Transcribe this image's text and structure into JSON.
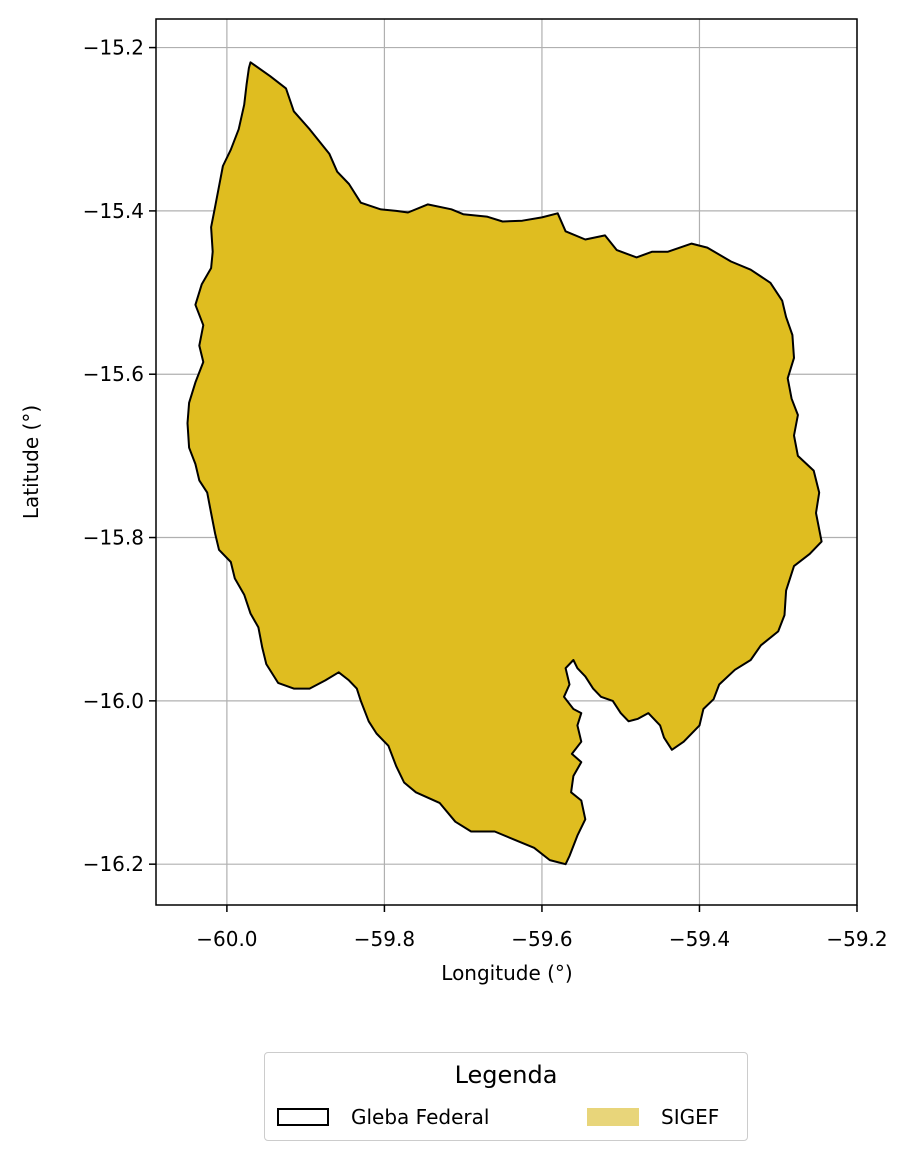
{
  "axes": {
    "xlabel": "Longitude (°)",
    "ylabel": "Latitude (°)",
    "xlim": [
      -60.09,
      -59.2
    ],
    "ylim": [
      -16.25,
      -15.165
    ],
    "xticks": [
      -60.0,
      -59.8,
      -59.6,
      -59.4,
      -59.2
    ],
    "xtick_labels": [
      "−60.0",
      "−59.8",
      "−59.6",
      "−59.4",
      "−59.2"
    ],
    "yticks": [
      -15.2,
      -15.4,
      -15.6,
      -15.8,
      -16.0,
      -16.2
    ],
    "ytick_labels": [
      "−15.2",
      "−15.4",
      "−15.6",
      "−15.8",
      "−16.0",
      "−16.2"
    ],
    "grid": true
  },
  "chart_data": {
    "type": "map",
    "grid": true,
    "layers": [
      {
        "name": "Gleba Federal",
        "style": "outline",
        "edge_color": "#000000",
        "polygon": [
          [
            -59.97,
            -15.218
          ],
          [
            -59.945,
            -15.235
          ],
          [
            -59.925,
            -15.25
          ],
          [
            -59.915,
            -15.278
          ],
          [
            -59.895,
            -15.3
          ],
          [
            -59.87,
            -15.33
          ],
          [
            -59.86,
            -15.352
          ],
          [
            -59.845,
            -15.367
          ],
          [
            -59.83,
            -15.39
          ],
          [
            -59.805,
            -15.398
          ],
          [
            -59.785,
            -15.4
          ],
          [
            -59.77,
            -15.402
          ],
          [
            -59.745,
            -15.392
          ],
          [
            -59.715,
            -15.398
          ],
          [
            -59.7,
            -15.404
          ],
          [
            -59.67,
            -15.407
          ],
          [
            -59.65,
            -15.413
          ],
          [
            -59.625,
            -15.412
          ],
          [
            -59.6,
            -15.408
          ],
          [
            -59.58,
            -15.403
          ],
          [
            -59.57,
            -15.425
          ],
          [
            -59.545,
            -15.435
          ],
          [
            -59.52,
            -15.43
          ],
          [
            -59.505,
            -15.448
          ],
          [
            -59.48,
            -15.457
          ],
          [
            -59.46,
            -15.45
          ],
          [
            -59.44,
            -15.45
          ],
          [
            -59.41,
            -15.44
          ],
          [
            -59.39,
            -15.445
          ],
          [
            -59.36,
            -15.462
          ],
          [
            -59.335,
            -15.472
          ],
          [
            -59.31,
            -15.488
          ],
          [
            -59.295,
            -15.51
          ],
          [
            -59.29,
            -15.53
          ],
          [
            -59.282,
            -15.552
          ],
          [
            -59.28,
            -15.58
          ],
          [
            -59.288,
            -15.605
          ],
          [
            -59.283,
            -15.63
          ],
          [
            -59.275,
            -15.65
          ],
          [
            -59.28,
            -15.675
          ],
          [
            -59.275,
            -15.7
          ],
          [
            -59.255,
            -15.718
          ],
          [
            -59.248,
            -15.745
          ],
          [
            -59.252,
            -15.77
          ],
          [
            -59.245,
            -15.805
          ],
          [
            -59.26,
            -15.82
          ],
          [
            -59.28,
            -15.835
          ],
          [
            -59.29,
            -15.865
          ],
          [
            -59.292,
            -15.895
          ],
          [
            -59.3,
            -15.915
          ],
          [
            -59.322,
            -15.932
          ],
          [
            -59.335,
            -15.95
          ],
          [
            -59.355,
            -15.962
          ],
          [
            -59.375,
            -15.98
          ],
          [
            -59.382,
            -15.998
          ],
          [
            -59.395,
            -16.01
          ],
          [
            -59.4,
            -16.03
          ],
          [
            -59.42,
            -16.05
          ],
          [
            -59.435,
            -16.06
          ],
          [
            -59.445,
            -16.045
          ],
          [
            -59.45,
            -16.03
          ],
          [
            -59.465,
            -16.015
          ],
          [
            -59.478,
            -16.022
          ],
          [
            -59.49,
            -16.025
          ],
          [
            -59.5,
            -16.015
          ],
          [
            -59.51,
            -16.0
          ],
          [
            -59.525,
            -15.995
          ],
          [
            -59.535,
            -15.985
          ],
          [
            -59.545,
            -15.97
          ],
          [
            -59.555,
            -15.96
          ],
          [
            -59.56,
            -15.95
          ],
          [
            -59.57,
            -15.96
          ],
          [
            -59.565,
            -15.98
          ],
          [
            -59.572,
            -15.995
          ],
          [
            -59.56,
            -16.01
          ],
          [
            -59.55,
            -16.015
          ],
          [
            -59.555,
            -16.03
          ],
          [
            -59.55,
            -16.05
          ],
          [
            -59.562,
            -16.065
          ],
          [
            -59.55,
            -16.075
          ],
          [
            -59.56,
            -16.092
          ],
          [
            -59.563,
            -16.112
          ],
          [
            -59.55,
            -16.122
          ],
          [
            -59.545,
            -16.145
          ],
          [
            -59.555,
            -16.165
          ],
          [
            -59.565,
            -16.19
          ],
          [
            -59.57,
            -16.2
          ],
          [
            -59.59,
            -16.195
          ],
          [
            -59.61,
            -16.18
          ],
          [
            -59.63,
            -16.172
          ],
          [
            -59.66,
            -16.16
          ],
          [
            -59.69,
            -16.16
          ],
          [
            -59.71,
            -16.148
          ],
          [
            -59.73,
            -16.125
          ],
          [
            -59.76,
            -16.112
          ],
          [
            -59.775,
            -16.1
          ],
          [
            -59.785,
            -16.08
          ],
          [
            -59.795,
            -16.055
          ],
          [
            -59.81,
            -16.04
          ],
          [
            -59.82,
            -16.025
          ],
          [
            -59.83,
            -16.0
          ],
          [
            -59.835,
            -15.985
          ],
          [
            -59.845,
            -15.975
          ],
          [
            -59.858,
            -15.965
          ],
          [
            -59.875,
            -15.975
          ],
          [
            -59.895,
            -15.985
          ],
          [
            -59.915,
            -15.985
          ],
          [
            -59.935,
            -15.978
          ],
          [
            -59.95,
            -15.955
          ],
          [
            -59.955,
            -15.935
          ],
          [
            -59.96,
            -15.91
          ],
          [
            -59.97,
            -15.893
          ],
          [
            -59.978,
            -15.87
          ],
          [
            -59.99,
            -15.85
          ],
          [
            -59.995,
            -15.83
          ],
          [
            -60.01,
            -15.815
          ],
          [
            -60.015,
            -15.795
          ],
          [
            -60.02,
            -15.77
          ],
          [
            -60.025,
            -15.745
          ],
          [
            -60.035,
            -15.73
          ],
          [
            -60.04,
            -15.71
          ],
          [
            -60.048,
            -15.69
          ],
          [
            -60.05,
            -15.66
          ],
          [
            -60.048,
            -15.635
          ],
          [
            -60.04,
            -15.61
          ],
          [
            -60.03,
            -15.585
          ],
          [
            -60.035,
            -15.565
          ],
          [
            -60.03,
            -15.54
          ],
          [
            -60.04,
            -15.515
          ],
          [
            -60.032,
            -15.49
          ],
          [
            -60.02,
            -15.47
          ],
          [
            -60.018,
            -15.45
          ],
          [
            -60.02,
            -15.42
          ],
          [
            -60.015,
            -15.395
          ],
          [
            -60.01,
            -15.37
          ],
          [
            -60.005,
            -15.345
          ],
          [
            -59.995,
            -15.325
          ],
          [
            -59.985,
            -15.3
          ],
          [
            -59.978,
            -15.27
          ],
          [
            -59.975,
            -15.245
          ],
          [
            -59.972,
            -15.225
          ],
          [
            -59.97,
            -15.218
          ]
        ]
      },
      {
        "name": "SIGEF",
        "style": "fill",
        "face_color": "#dfbd20",
        "legend_color": "#e8d57a",
        "same_polygon_as": "Gleba Federal"
      }
    ]
  },
  "legend": {
    "title": "Legenda",
    "placement": "bottom-center, below plot",
    "items": [
      {
        "label": "Gleba Federal",
        "style": "outline",
        "color": "#000000"
      },
      {
        "label": "SIGEF",
        "style": "fill",
        "color": "#e8d57a"
      }
    ]
  }
}
